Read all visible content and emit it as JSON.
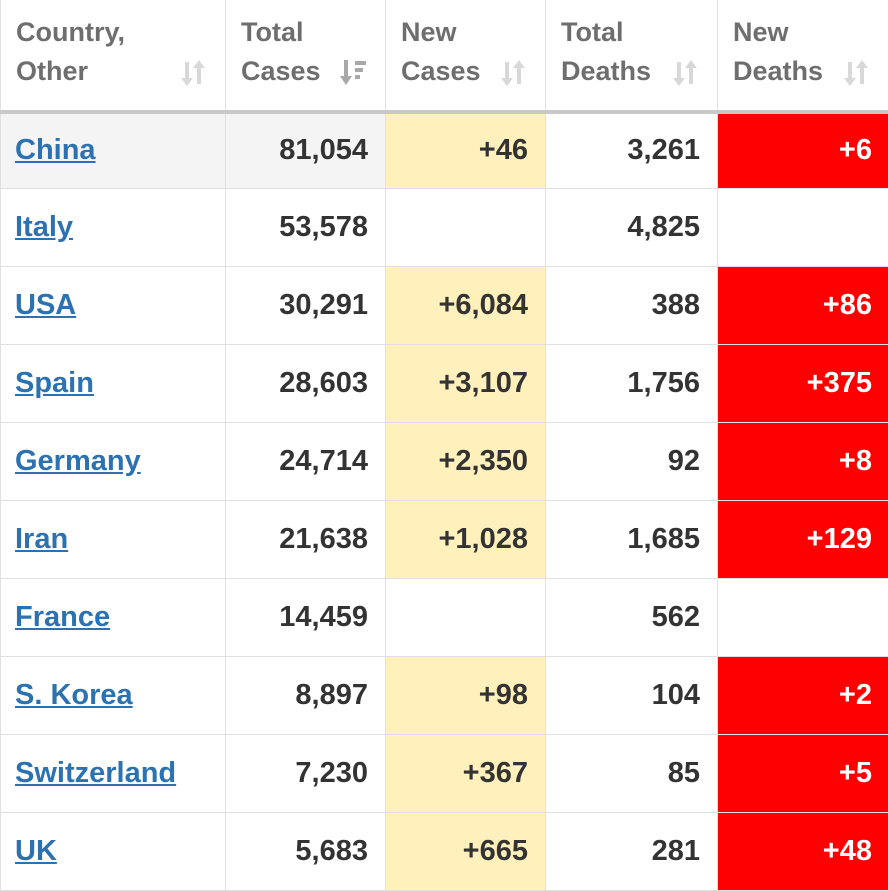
{
  "table": {
    "headers": [
      {
        "line1": "Country,",
        "line2": "Other",
        "sort_icon": "sort-icon"
      },
      {
        "line1": "Total",
        "line2": "Cases",
        "sort_icon": "sort-desc-icon"
      },
      {
        "line1": "New",
        "line2": "Cases",
        "sort_icon": "sort-icon"
      },
      {
        "line1": "Total",
        "line2": "Deaths",
        "sort_icon": "sort-icon"
      },
      {
        "line1": "New",
        "line2": "Deaths",
        "sort_icon": "sort-icon"
      }
    ],
    "rows": [
      {
        "country": "China",
        "total_cases": "81,054",
        "new_cases": "+46",
        "total_deaths": "3,261",
        "new_deaths": "+6"
      },
      {
        "country": "Italy",
        "total_cases": "53,578",
        "new_cases": "",
        "total_deaths": "4,825",
        "new_deaths": ""
      },
      {
        "country": "USA",
        "total_cases": "30,291",
        "new_cases": "+6,084",
        "total_deaths": "388",
        "new_deaths": "+86"
      },
      {
        "country": "Spain",
        "total_cases": "28,603",
        "new_cases": "+3,107",
        "total_deaths": "1,756",
        "new_deaths": "+375"
      },
      {
        "country": "Germany",
        "total_cases": "24,714",
        "new_cases": "+2,350",
        "total_deaths": "92",
        "new_deaths": "+8"
      },
      {
        "country": "Iran",
        "total_cases": "21,638",
        "new_cases": "+1,028",
        "total_deaths": "1,685",
        "new_deaths": "+129"
      },
      {
        "country": "France",
        "total_cases": "14,459",
        "new_cases": "",
        "total_deaths": "562",
        "new_deaths": ""
      },
      {
        "country": "S. Korea",
        "total_cases": "8,897",
        "new_cases": "+98",
        "total_deaths": "104",
        "new_deaths": "+2"
      },
      {
        "country": "Switzerland",
        "total_cases": "7,230",
        "new_cases": "+367",
        "total_deaths": "85",
        "new_deaths": "+5"
      },
      {
        "country": "UK",
        "total_cases": "5,683",
        "new_cases": "+665",
        "total_deaths": "281",
        "new_deaths": "+48"
      }
    ]
  },
  "colors": {
    "link": "#2c72b2",
    "new_cases_bg": "#fff0bc",
    "new_deaths_bg": "#ff0000",
    "header_text": "#6e6e6e",
    "cell_text": "#333333",
    "highlight_row_bg": "#f4f4f4"
  }
}
